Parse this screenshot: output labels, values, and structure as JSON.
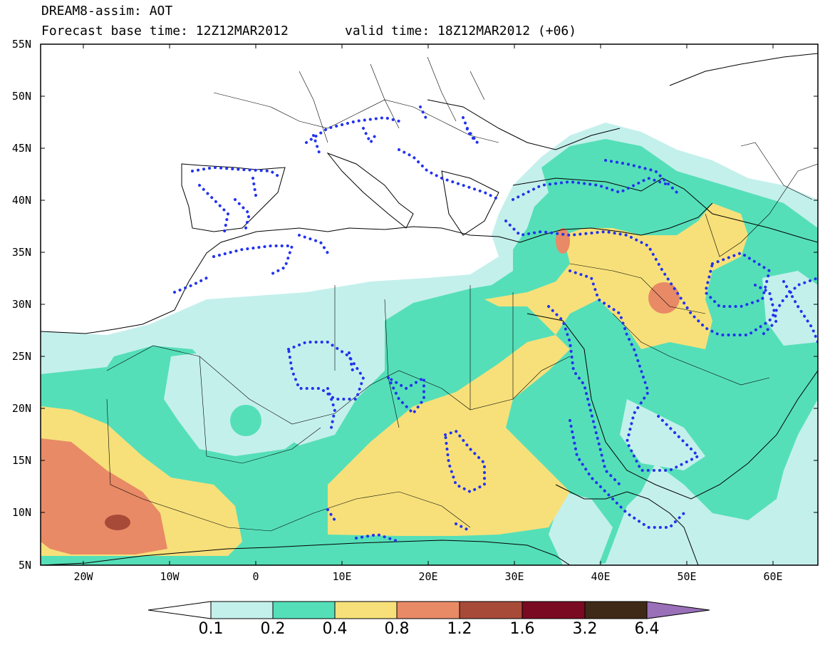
{
  "header": {
    "line1": "DREAM8-assim: AOT",
    "base_time": "Forecast base time: 12Z12MAR2012",
    "valid_time": "valid time: 18Z12MAR2012 (+06)"
  },
  "axes": {
    "lat_labels": [
      "55N",
      "50N",
      "45N",
      "40N",
      "35N",
      "30N",
      "25N",
      "20N",
      "15N",
      "10N",
      "5N"
    ],
    "lon_labels": [
      "20W",
      "10W",
      "0",
      "10E",
      "20E",
      "30E",
      "40E",
      "50E",
      "60E"
    ]
  },
  "colorbar": {
    "labels": [
      "0.1",
      "0.2",
      "0.4",
      "0.8",
      "1.2",
      "1.6",
      "3.2",
      "6.4"
    ],
    "colors": [
      "#ffffff",
      "#c4f0ec",
      "#55dfb8",
      "#f7e07a",
      "#e88a66",
      "#a84a38",
      "#7a0a22",
      "#3f2a18",
      "#9a70b8"
    ]
  },
  "colors": {
    "aot_0_1": "#c4f0ec",
    "aot_0_2": "#55dfb8",
    "aot_0_4": "#f7e07a",
    "aot_0_8": "#e88a66",
    "aot_1_2": "#a84a38",
    "assim_dots": "#2233ee"
  },
  "legend": {
    "overlay_icon": "blue-dotted-contour"
  }
}
